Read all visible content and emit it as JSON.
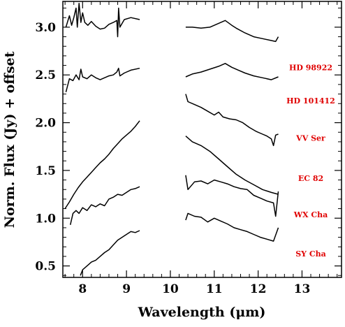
{
  "chart_data": {
    "type": "line",
    "title": "",
    "xlabel": "Wavelength (μm)",
    "ylabel": "Norm. Flux (Jy) + offset",
    "xlim": [
      7.55,
      13.9
    ],
    "ylim": [
      0.38,
      3.27
    ],
    "xticks": [
      8,
      9,
      10,
      11,
      12,
      13
    ],
    "yticks": [
      0.5,
      1.0,
      1.5,
      2.0,
      2.5,
      3.0
    ],
    "ytick_labels": [
      "0.5",
      "1.0",
      "1.5",
      "2.0",
      "2.5",
      "3.0"
    ],
    "label_color": "#e00000",
    "series": [
      {
        "name": "HD 98922",
        "segments": [
          [
            [
              7.62,
              3.0
            ],
            [
              7.7,
              3.12
            ],
            [
              7.75,
              3.02
            ],
            [
              7.8,
              3.1
            ],
            [
              7.85,
              3.2
            ],
            [
              7.88,
              3.0
            ],
            [
              7.92,
              3.25
            ],
            [
              7.96,
              3.05
            ],
            [
              8.0,
              3.15
            ],
            [
              8.05,
              3.05
            ],
            [
              8.12,
              3.02
            ],
            [
              8.2,
              3.06
            ],
            [
              8.3,
              3.01
            ],
            [
              8.4,
              2.98
            ],
            [
              8.5,
              2.99
            ],
            [
              8.6,
              3.03
            ],
            [
              8.7,
              3.05
            ],
            [
              8.78,
              3.07
            ],
            [
              8.8,
              2.9
            ],
            [
              8.82,
              3.2
            ],
            [
              8.85,
              3.0
            ],
            [
              8.95,
              3.08
            ],
            [
              9.1,
              3.1
            ],
            [
              9.3,
              3.08
            ]
          ],
          [
            [
              10.35,
              3.0
            ],
            [
              10.5,
              3.0
            ],
            [
              10.7,
              2.99
            ],
            [
              10.9,
              3.0
            ],
            [
              11.1,
              3.04
            ],
            [
              11.25,
              3.07
            ],
            [
              11.4,
              3.02
            ],
            [
              11.5,
              2.99
            ],
            [
              11.7,
              2.94
            ],
            [
              11.9,
              2.9
            ],
            [
              12.1,
              2.88
            ],
            [
              12.3,
              2.86
            ],
            [
              12.4,
              2.85
            ],
            [
              12.46,
              2.9
            ]
          ]
        ]
      },
      {
        "name": "HD 101412",
        "segments": [
          [
            [
              7.62,
              2.32
            ],
            [
              7.7,
              2.46
            ],
            [
              7.78,
              2.44
            ],
            [
              7.85,
              2.5
            ],
            [
              7.92,
              2.45
            ],
            [
              7.96,
              2.56
            ],
            [
              8.0,
              2.48
            ],
            [
              8.1,
              2.46
            ],
            [
              8.2,
              2.5
            ],
            [
              8.3,
              2.47
            ],
            [
              8.4,
              2.45
            ],
            [
              8.5,
              2.47
            ],
            [
              8.6,
              2.49
            ],
            [
              8.7,
              2.5
            ],
            [
              8.78,
              2.53
            ],
            [
              8.82,
              2.57
            ],
            [
              8.85,
              2.49
            ],
            [
              8.95,
              2.52
            ],
            [
              9.1,
              2.55
            ],
            [
              9.3,
              2.57
            ]
          ],
          [
            [
              10.35,
              2.48
            ],
            [
              10.5,
              2.51
            ],
            [
              10.7,
              2.53
            ],
            [
              10.9,
              2.56
            ],
            [
              11.1,
              2.59
            ],
            [
              11.25,
              2.62
            ],
            [
              11.4,
              2.58
            ],
            [
              11.55,
              2.55
            ],
            [
              11.7,
              2.52
            ],
            [
              11.9,
              2.49
            ],
            [
              12.1,
              2.47
            ],
            [
              12.3,
              2.45
            ],
            [
              12.46,
              2.48
            ]
          ]
        ]
      },
      {
        "name": "VV Ser",
        "segments": [
          [
            [
              10.35,
              2.3
            ],
            [
              10.4,
              2.22
            ],
            [
              10.55,
              2.19
            ],
            [
              10.7,
              2.16
            ],
            [
              10.85,
              2.12
            ],
            [
              11.0,
              2.08
            ],
            [
              11.1,
              2.11
            ],
            [
              11.2,
              2.06
            ],
            [
              11.35,
              2.04
            ],
            [
              11.5,
              2.03
            ],
            [
              11.65,
              2.0
            ],
            [
              11.8,
              1.95
            ],
            [
              11.95,
              1.91
            ],
            [
              12.1,
              1.88
            ],
            [
              12.2,
              1.86
            ],
            [
              12.3,
              1.83
            ],
            [
              12.35,
              1.76
            ],
            [
              12.4,
              1.87
            ],
            [
              12.46,
              1.88
            ]
          ]
        ]
      },
      {
        "name": "EC 82",
        "segments": [
          [
            [
              7.6,
              1.1
            ],
            [
              7.7,
              1.17
            ],
            [
              7.8,
              1.25
            ],
            [
              7.9,
              1.32
            ],
            [
              8.0,
              1.38
            ],
            [
              8.1,
              1.43
            ],
            [
              8.2,
              1.48
            ],
            [
              8.3,
              1.53
            ],
            [
              8.4,
              1.58
            ],
            [
              8.5,
              1.62
            ],
            [
              8.6,
              1.67
            ],
            [
              8.7,
              1.73
            ],
            [
              8.8,
              1.78
            ],
            [
              8.9,
              1.83
            ],
            [
              9.0,
              1.87
            ],
            [
              9.1,
              1.91
            ],
            [
              9.2,
              1.96
            ],
            [
              9.3,
              2.02
            ]
          ],
          [
            [
              10.35,
              1.86
            ],
            [
              10.5,
              1.8
            ],
            [
              10.7,
              1.76
            ],
            [
              10.9,
              1.7
            ],
            [
              11.1,
              1.62
            ],
            [
              11.3,
              1.54
            ],
            [
              11.5,
              1.46
            ],
            [
              11.7,
              1.4
            ],
            [
              11.9,
              1.35
            ],
            [
              12.1,
              1.3
            ],
            [
              12.3,
              1.27
            ],
            [
              12.46,
              1.25
            ]
          ]
        ]
      },
      {
        "name": "WX Cha",
        "segments": [
          [
            [
              7.72,
              0.93
            ],
            [
              7.78,
              1.05
            ],
            [
              7.85,
              1.08
            ],
            [
              7.92,
              1.05
            ],
            [
              8.0,
              1.11
            ],
            [
              8.1,
              1.08
            ],
            [
              8.2,
              1.14
            ],
            [
              8.3,
              1.12
            ],
            [
              8.4,
              1.15
            ],
            [
              8.5,
              1.13
            ],
            [
              8.6,
              1.2
            ],
            [
              8.7,
              1.22
            ],
            [
              8.8,
              1.25
            ],
            [
              8.9,
              1.24
            ],
            [
              9.0,
              1.27
            ],
            [
              9.1,
              1.3
            ],
            [
              9.2,
              1.31
            ],
            [
              9.3,
              1.33
            ]
          ],
          [
            [
              10.35,
              1.45
            ],
            [
              10.4,
              1.3
            ],
            [
              10.55,
              1.38
            ],
            [
              10.7,
              1.39
            ],
            [
              10.85,
              1.36
            ],
            [
              11.0,
              1.4
            ],
            [
              11.15,
              1.38
            ],
            [
              11.3,
              1.36
            ],
            [
              11.45,
              1.33
            ],
            [
              11.6,
              1.31
            ],
            [
              11.75,
              1.3
            ],
            [
              11.9,
              1.24
            ],
            [
              12.05,
              1.21
            ],
            [
              12.2,
              1.18
            ],
            [
              12.35,
              1.16
            ],
            [
              12.4,
              1.02
            ],
            [
              12.46,
              1.28
            ]
          ]
        ]
      },
      {
        "name": "SY Cha",
        "segments": [
          [
            [
              7.95,
              0.4
            ],
            [
              8.0,
              0.46
            ],
            [
              8.1,
              0.5
            ],
            [
              8.2,
              0.54
            ],
            [
              8.3,
              0.56
            ],
            [
              8.4,
              0.6
            ],
            [
              8.5,
              0.64
            ],
            [
              8.6,
              0.67
            ],
            [
              8.7,
              0.72
            ],
            [
              8.8,
              0.77
            ],
            [
              8.9,
              0.8
            ],
            [
              9.0,
              0.83
            ],
            [
              9.1,
              0.86
            ],
            [
              9.2,
              0.85
            ],
            [
              9.3,
              0.87
            ]
          ],
          [
            [
              10.35,
              0.98
            ],
            [
              10.4,
              1.05
            ],
            [
              10.55,
              1.02
            ],
            [
              10.7,
              1.01
            ],
            [
              10.85,
              0.96
            ],
            [
              11.0,
              1.0
            ],
            [
              11.15,
              0.97
            ],
            [
              11.3,
              0.94
            ],
            [
              11.45,
              0.9
            ],
            [
              11.6,
              0.88
            ],
            [
              11.75,
              0.86
            ],
            [
              11.9,
              0.83
            ],
            [
              12.05,
              0.8
            ],
            [
              12.2,
              0.78
            ],
            [
              12.35,
              0.76
            ],
            [
              12.46,
              0.9
            ]
          ]
        ]
      }
    ]
  }
}
